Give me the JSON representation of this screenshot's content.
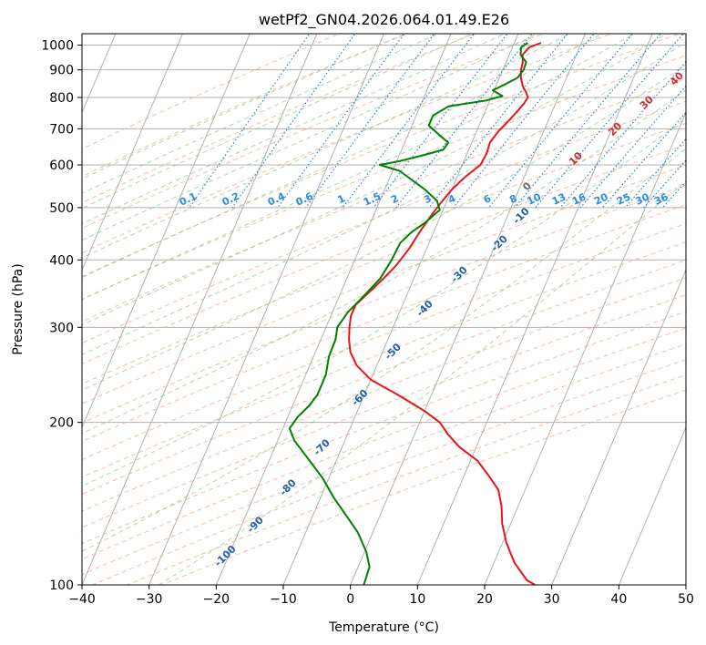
{
  "chart_data": {
    "type": "line",
    "title": "wetPf2_GN04.2026.064.01.49.E26",
    "xlabel": "Temperature (°C)",
    "ylabel": "Pressure (hPa)",
    "xlim": [
      -40,
      50
    ],
    "ylim": [
      1050,
      100
    ],
    "y_scale": "log",
    "grid": true,
    "x_ticks": [
      -40,
      -30,
      -20,
      -10,
      0,
      10,
      20,
      30,
      40,
      50
    ],
    "x_tick_labels": [
      "−40",
      "−30",
      "−20",
      "−10",
      "0",
      "10",
      "20",
      "30",
      "40",
      "50"
    ],
    "y_ticks": [
      1000,
      900,
      800,
      700,
      600,
      500,
      400,
      300,
      200,
      100
    ],
    "y_tick_labels": [
      "1000",
      "900",
      "800",
      "700",
      "600",
      "500",
      "400",
      "300",
      "200",
      "100"
    ],
    "series": [
      {
        "role": "temperature",
        "color": "#e8141c",
        "points": [
          [
            -6.0,
            1010
          ],
          [
            -7.5,
            990
          ],
          [
            -8.0,
            960
          ],
          [
            -7.5,
            930
          ],
          [
            -7.3,
            900
          ],
          [
            -6.8,
            870
          ],
          [
            -6.0,
            840
          ],
          [
            -5.0,
            815
          ],
          [
            -4.5,
            800
          ],
          [
            -4.7,
            780
          ],
          [
            -5.3,
            750
          ],
          [
            -6.0,
            720
          ],
          [
            -6.8,
            690
          ],
          [
            -7.3,
            660
          ],
          [
            -7.1,
            630
          ],
          [
            -7.3,
            600
          ],
          [
            -8.8,
            570
          ],
          [
            -10.0,
            540
          ],
          [
            -10.8,
            510
          ],
          [
            -11.5,
            480
          ],
          [
            -12.1,
            450
          ],
          [
            -12.6,
            420
          ],
          [
            -13.5,
            390
          ],
          [
            -14.5,
            370
          ],
          [
            -15.7,
            350
          ],
          [
            -17.0,
            330
          ],
          [
            -17.0,
            315
          ],
          [
            -16.5,
            300
          ],
          [
            -15.8,
            285
          ],
          [
            -14.8,
            270
          ],
          [
            -13.0,
            255
          ],
          [
            -10.0,
            240
          ],
          [
            -5.0,
            225
          ],
          [
            0.0,
            210
          ],
          [
            3.0,
            200
          ],
          [
            5.0,
            190
          ],
          [
            7.5,
            180
          ],
          [
            11.0,
            170
          ],
          [
            13.5,
            160
          ],
          [
            16.0,
            150
          ],
          [
            17.5,
            140
          ],
          [
            18.7,
            130
          ],
          [
            20.5,
            120
          ],
          [
            23.0,
            110
          ],
          [
            26.0,
            102
          ],
          [
            27.5,
            100
          ]
        ]
      },
      {
        "role": "dewpoint",
        "color": "#008000",
        "points": [
          [
            -8.0,
            1010
          ],
          [
            -8.7,
            990
          ],
          [
            -8.3,
            960
          ],
          [
            -7.0,
            930
          ],
          [
            -6.9,
            900
          ],
          [
            -7.3,
            870
          ],
          [
            -8.8,
            845
          ],
          [
            -10.2,
            825
          ],
          [
            -8.4,
            805
          ],
          [
            -10.5,
            790
          ],
          [
            -15.8,
            770
          ],
          [
            -17.5,
            740
          ],
          [
            -17.5,
            710
          ],
          [
            -15.2,
            680
          ],
          [
            -13.5,
            660
          ],
          [
            -13.8,
            640
          ],
          [
            -16.5,
            625
          ],
          [
            -19.5,
            610
          ],
          [
            -22.3,
            600
          ],
          [
            -19.0,
            585
          ],
          [
            -16.8,
            565
          ],
          [
            -14.0,
            540
          ],
          [
            -11.5,
            515
          ],
          [
            -10.5,
            495
          ],
          [
            -11.8,
            470
          ],
          [
            -13.3,
            450
          ],
          [
            -14.3,
            430
          ],
          [
            -14.5,
            400
          ],
          [
            -15.0,
            370
          ],
          [
            -16.5,
            340
          ],
          [
            -17.7,
            320
          ],
          [
            -18.3,
            300
          ],
          [
            -17.8,
            285
          ],
          [
            -17.7,
            265
          ],
          [
            -17.0,
            245
          ],
          [
            -17.0,
            225
          ],
          [
            -17.5,
            215
          ],
          [
            -18.5,
            205
          ],
          [
            -19.0,
            195
          ],
          [
            -17.5,
            185
          ],
          [
            -14.0,
            170
          ],
          [
            -11.0,
            158
          ],
          [
            -8.0,
            145
          ],
          [
            -5.2,
            135
          ],
          [
            -2.2,
            125
          ],
          [
            0.3,
            115
          ],
          [
            1.7,
            108
          ],
          [
            2.0,
            100
          ]
        ]
      }
    ],
    "dry_adiabat_labels": [
      "-100",
      "-90",
      "-80",
      "-70",
      "-60",
      "-50",
      "-40",
      "-30",
      "-20",
      "-10",
      "0",
      "10",
      "20",
      "30",
      "40"
    ],
    "mixing_ratio_labels": [
      "0.1",
      "0.2",
      "0.4",
      "0.6",
      "1",
      "1.5",
      "2",
      "3",
      "4",
      "6",
      "8",
      "10",
      "13",
      "16",
      "20",
      "25",
      "30",
      "36"
    ],
    "colors": {
      "isotherm": "#b0b0b0",
      "isobar": "#b0b0b0",
      "dry_adiabat": "#f4a582",
      "moist_adiabat": "#8cc58c",
      "mixing_ratio": "#1f78d1",
      "theta_e_label": "#1f5fa8",
      "dry_label": "#d62728",
      "mixing_label": "#2a8ce6"
    }
  }
}
